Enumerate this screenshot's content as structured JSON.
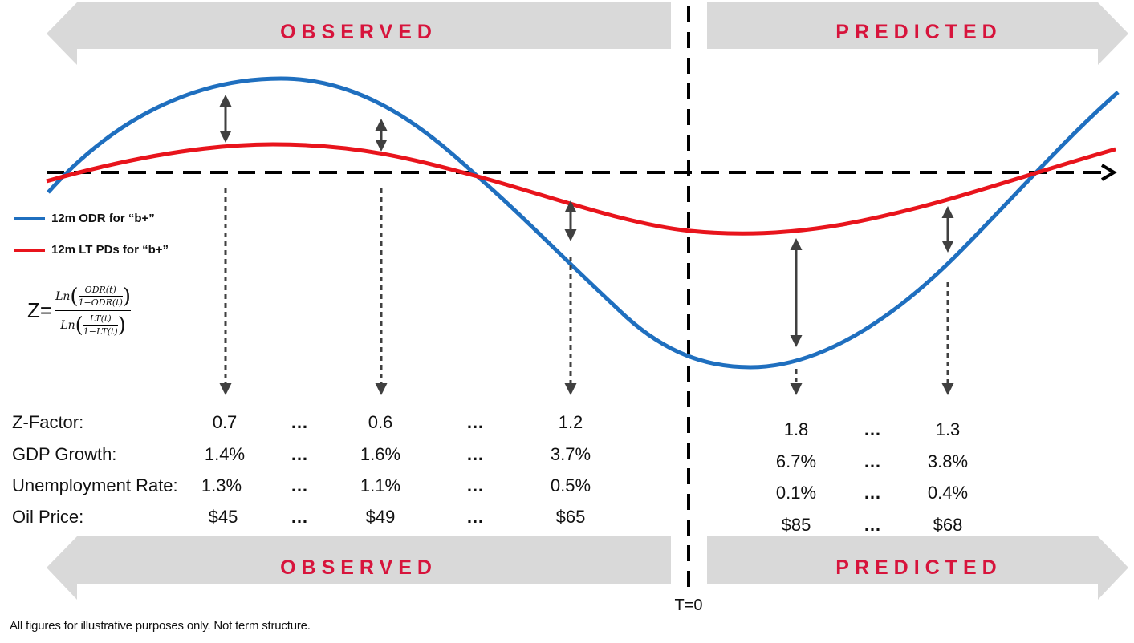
{
  "banners": {
    "top_left": "OBSERVED",
    "top_right": "PREDICTED",
    "bottom_left": "OBSERVED",
    "bottom_right": "PREDICTED"
  },
  "legend": {
    "odr": "12m ODR for “b+”",
    "lt": "12m LT PDs for “b+”"
  },
  "formula": {
    "z": "Z=",
    "ln": "Ln",
    "odr_num": "ODR(t)",
    "odr_den": "1−ODR(t)",
    "lt_num": "LT(t)",
    "lt_den": "1−LT(t)"
  },
  "table": {
    "labels": [
      "Z-Factor:",
      "GDP Growth:",
      "Unemployment Rate:",
      "Oil Price:"
    ],
    "observed": [
      [
        "0.7",
        "0.6",
        "1.2"
      ],
      [
        "1.4%",
        "1.6%",
        "3.7%"
      ],
      [
        "1.3%",
        "1.1%",
        "0.5%"
      ],
      [
        "$45",
        "$49",
        "$65"
      ]
    ],
    "predicted": [
      [
        "1.8",
        "1.3"
      ],
      [
        "6.7%",
        "3.8%"
      ],
      [
        "0.1%",
        "0.4%"
      ],
      [
        "$85",
        "$68"
      ]
    ],
    "ellipsis": "…"
  },
  "t_zero": "T=0",
  "footnote": "All figures for illustrative  purposes only. Not term structure.",
  "colors": {
    "odr": "#1f6fbf",
    "lt": "#e8141c",
    "banner_fill": "#d9d9d9",
    "banner_text": "#d7143c",
    "arrow": "#404040"
  }
}
